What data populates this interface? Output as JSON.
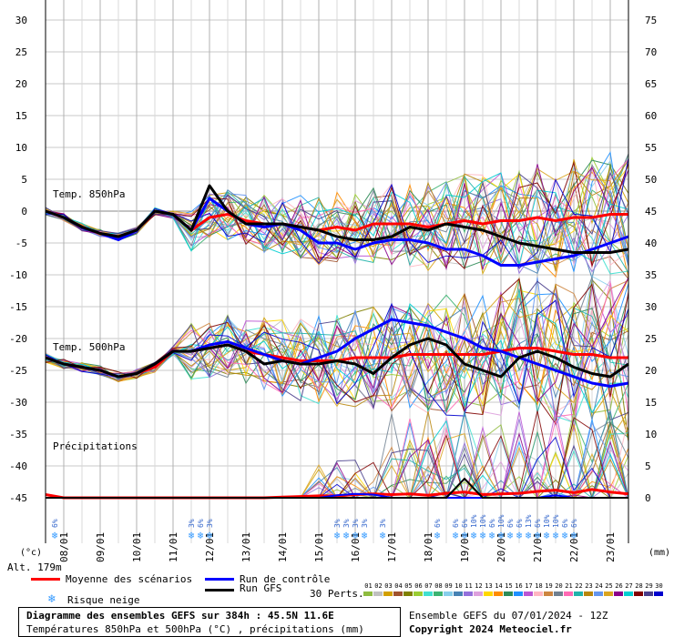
{
  "chart_data": {
    "type": "line",
    "title": "Diagramme des ensembles GEFS sur 384h : 45.5N 11.6E",
    "subtitle": "Températures 850hPa et 500hPa (°C) , précipitations (mm)",
    "run_info": "Ensemble GEFS du 07/01/2024 - 12Z",
    "copyright": "Copyright 2024 Meteociel.fr",
    "altitude": "Alt. 179m",
    "left_axis": {
      "unit": "(°c)",
      "ylim": [
        -45,
        30
      ],
      "ticks": [
        30,
        25,
        20,
        15,
        10,
        5,
        0,
        -5,
        -10,
        -15,
        -20,
        -25,
        -30,
        -35,
        -40,
        -45
      ]
    },
    "right_axis": {
      "unit": "(mm)",
      "ylim": [
        0,
        75
      ],
      "ticks": [
        75,
        70,
        65,
        60,
        55,
        50,
        45,
        40,
        35,
        30,
        25,
        20,
        15,
        10,
        5,
        0
      ]
    },
    "x_axis": {
      "range_hours": [
        0,
        384
      ],
      "day_labels": [
        "08/01",
        "09/01",
        "10/01",
        "11/01",
        "12/01",
        "13/01",
        "14/01",
        "15/01",
        "16/01",
        "17/01",
        "18/01",
        "19/01",
        "20/01",
        "21/01",
        "22/01",
        "23/01"
      ]
    },
    "section_labels": {
      "t850": "Temp. 850hPa",
      "t500": "Temp. 500hPa",
      "precip": "Précipitations"
    },
    "times_hours": [
      0,
      12,
      24,
      36,
      48,
      60,
      72,
      84,
      96,
      108,
      120,
      132,
      144,
      156,
      168,
      180,
      192,
      204,
      216,
      228,
      240,
      252,
      264,
      276,
      288,
      300,
      312,
      324,
      336,
      348,
      360,
      372,
      384
    ],
    "series": [
      {
        "name": "Moyenne des scénarios",
        "group": "t850",
        "color": "#ff0000",
        "width": 3,
        "values": [
          0,
          -1,
          -2.5,
          -3.5,
          -4,
          -3,
          0,
          -0.5,
          -3,
          -1,
          -0.5,
          -1.5,
          -2,
          -2,
          -2.5,
          -3,
          -2.5,
          -3,
          -2,
          -2,
          -2,
          -2.5,
          -2,
          -1.5,
          -2,
          -1.5,
          -1.5,
          -1,
          -1.5,
          -1,
          -1,
          -0.5,
          -0.5
        ]
      },
      {
        "name": "Run de contrôle",
        "group": "t850",
        "color": "#0000ff",
        "width": 3,
        "values": [
          0,
          -1,
          -2.5,
          -3.5,
          -4.5,
          -3,
          0,
          -0.5,
          -3,
          2,
          0,
          -2,
          -2.5,
          -2,
          -3,
          -5,
          -5,
          -6,
          -5,
          -4.5,
          -4.5,
          -5,
          -6,
          -6,
          -7,
          -8.5,
          -8.5,
          -8,
          -7.5,
          -7,
          -6,
          -5,
          -4
        ]
      },
      {
        "name": "Run GFS",
        "group": "t850",
        "color": "#000000",
        "width": 3,
        "values": [
          0,
          -1,
          -2.5,
          -3.5,
          -4,
          -3,
          0,
          -0.5,
          -3,
          4,
          0,
          -2,
          -2,
          -2,
          -2.5,
          -3,
          -4,
          -4.5,
          -4.5,
          -4,
          -2.5,
          -3,
          -2,
          -2.5,
          -3,
          -4,
          -5,
          -5.5,
          -6,
          -6.5,
          -6.5,
          -6.5,
          -6
        ]
      },
      {
        "name": "Moyenne des scénarios",
        "group": "t500",
        "color": "#ff0000",
        "width": 3,
        "values": [
          -23,
          -24,
          -24.5,
          -25,
          -26,
          -25.5,
          -24.5,
          -22,
          -22,
          -21.5,
          -21,
          -22,
          -22.5,
          -23,
          -23.5,
          -23.5,
          -23.5,
          -23,
          -23,
          -23,
          -22.5,
          -22.5,
          -22.5,
          -22.5,
          -22.5,
          -22,
          -21.5,
          -21.5,
          -22,
          -22.5,
          -22.5,
          -23,
          -23
        ]
      },
      {
        "name": "Run de contrôle",
        "group": "t500",
        "color": "#0000ff",
        "width": 3,
        "values": [
          -23,
          -24,
          -24.5,
          -25,
          -26,
          -25.5,
          -24,
          -22,
          -22,
          -21,
          -20.5,
          -21.5,
          -22.5,
          -23.5,
          -24,
          -23,
          -22,
          -20,
          -18.5,
          -17,
          -17.5,
          -18,
          -19,
          -20,
          -21.5,
          -22,
          -23,
          -24,
          -25,
          -26,
          -27,
          -27.5,
          -27
        ]
      },
      {
        "name": "Run GFS",
        "group": "t500",
        "color": "#000000",
        "width": 3,
        "values": [
          -23,
          -24,
          -24.5,
          -25,
          -26,
          -25.5,
          -24,
          -22,
          -22,
          -21.5,
          -21,
          -22,
          -24,
          -23.5,
          -24,
          -24,
          -23.5,
          -24,
          -25.5,
          -23,
          -21,
          -20,
          -21,
          -24,
          -25,
          -26,
          -23,
          -22,
          -23,
          -24.5,
          -25.5,
          -26,
          -24
        ]
      },
      {
        "name": "Moyenne des scénarios",
        "group": "precip",
        "color": "#ff0000",
        "width": 3,
        "values": [
          0.5,
          0,
          0,
          0,
          0,
          0,
          0,
          0,
          0,
          0,
          0,
          0,
          0,
          0.1,
          0.2,
          0.3,
          0.3,
          0.5,
          0.6,
          0.5,
          0.6,
          0.4,
          0.7,
          0.9,
          0.5,
          0.6,
          0.7,
          1,
          1.2,
          0.8,
          1.3,
          0.9,
          0.6
        ]
      },
      {
        "name": "Run de contrôle",
        "group": "precip",
        "color": "#0000ff",
        "width": 2,
        "values": [
          0,
          0,
          0,
          0,
          0,
          0,
          0,
          0,
          0,
          0,
          0,
          0,
          0,
          0,
          0,
          0,
          0.4,
          0.6,
          0.5,
          0,
          0,
          0,
          0,
          0,
          0,
          0,
          0,
          0,
          0.4,
          0,
          0,
          0,
          0
        ]
      },
      {
        "name": "Run GFS",
        "group": "precip",
        "color": "#000000",
        "width": 2,
        "values": [
          0,
          0,
          0,
          0,
          0,
          0,
          0,
          0,
          0,
          0,
          0,
          0,
          0,
          0,
          0,
          0,
          0,
          0,
          0,
          0,
          0,
          0,
          0,
          3,
          0,
          0,
          0,
          0,
          0,
          0,
          0,
          0,
          0
        ]
      }
    ],
    "snow_risk": [
      {
        "hour": 6,
        "pct": "6%"
      },
      {
        "hour": 96,
        "pct": "3%"
      },
      {
        "hour": 102,
        "pct": "6%"
      },
      {
        "hour": 108,
        "pct": "3%"
      },
      {
        "hour": 192,
        "pct": "3%"
      },
      {
        "hour": 198,
        "pct": "3%"
      },
      {
        "hour": 204,
        "pct": "3%"
      },
      {
        "hour": 210,
        "pct": "3%"
      },
      {
        "hour": 222,
        "pct": "3%"
      },
      {
        "hour": 258,
        "pct": "6%"
      },
      {
        "hour": 270,
        "pct": "6%"
      },
      {
        "hour": 276,
        "pct": "6%"
      },
      {
        "hour": 282,
        "pct": "10%"
      },
      {
        "hour": 288,
        "pct": "10%"
      },
      {
        "hour": 294,
        "pct": "6%"
      },
      {
        "hour": 300,
        "pct": "10%"
      },
      {
        "hour": 306,
        "pct": "6%"
      },
      {
        "hour": 312,
        "pct": "6%"
      },
      {
        "hour": 318,
        "pct": "13%"
      },
      {
        "hour": 324,
        "pct": "6%"
      },
      {
        "hour": 330,
        "pct": "10%"
      },
      {
        "hour": 336,
        "pct": "10%"
      },
      {
        "hour": 342,
        "pct": "6%"
      },
      {
        "hour": 348,
        "pct": "6%"
      }
    ]
  },
  "legend": {
    "mean_label": "Moyenne des scénarios",
    "control_label": "Run de contrôle",
    "gfs_label": "Run GFS",
    "snow_label": "Risque neige",
    "perts_label": "30 Perts.",
    "perts_numbers": [
      "01",
      "02",
      "03",
      "04",
      "05",
      "06",
      "07",
      "08",
      "09",
      "10",
      "11",
      "12",
      "13",
      "14",
      "15",
      "16",
      "17",
      "18",
      "19",
      "20",
      "21",
      "22",
      "23",
      "24",
      "25",
      "26",
      "27",
      "28",
      "29",
      "30"
    ],
    "perts_colors": [
      "#8fbc3f",
      "#c0c0c0",
      "#d2a000",
      "#a0522d",
      "#808000",
      "#9acd32",
      "#40e0d0",
      "#3cb371",
      "#87ceeb",
      "#4682b4",
      "#9370db",
      "#dda0dd",
      "#ffd700",
      "#ff8c00",
      "#2e8b57",
      "#1e90ff",
      "#ba55d3",
      "#ffb6c1",
      "#cd853f",
      "#708090",
      "#ff69b4",
      "#20b2aa",
      "#b8860b",
      "#6495ed",
      "#daa520",
      "#8b008b",
      "#00ced1",
      "#800000",
      "#483d8b",
      "#0000cd"
    ]
  },
  "labels": {
    "left_unit": "(°c)",
    "right_unit": "(mm)",
    "altitude": "Alt. 179m",
    "title_line1": "Diagramme des ensembles GEFS sur 384h : 45.5N 11.6E",
    "title_line2": "Températures 850hPa et 500hPa (°C) , précipitations (mm)",
    "run_info": "Ensemble GEFS du 07/01/2024 - 12Z",
    "copyright": "Copyright 2024 Meteociel.fr"
  }
}
